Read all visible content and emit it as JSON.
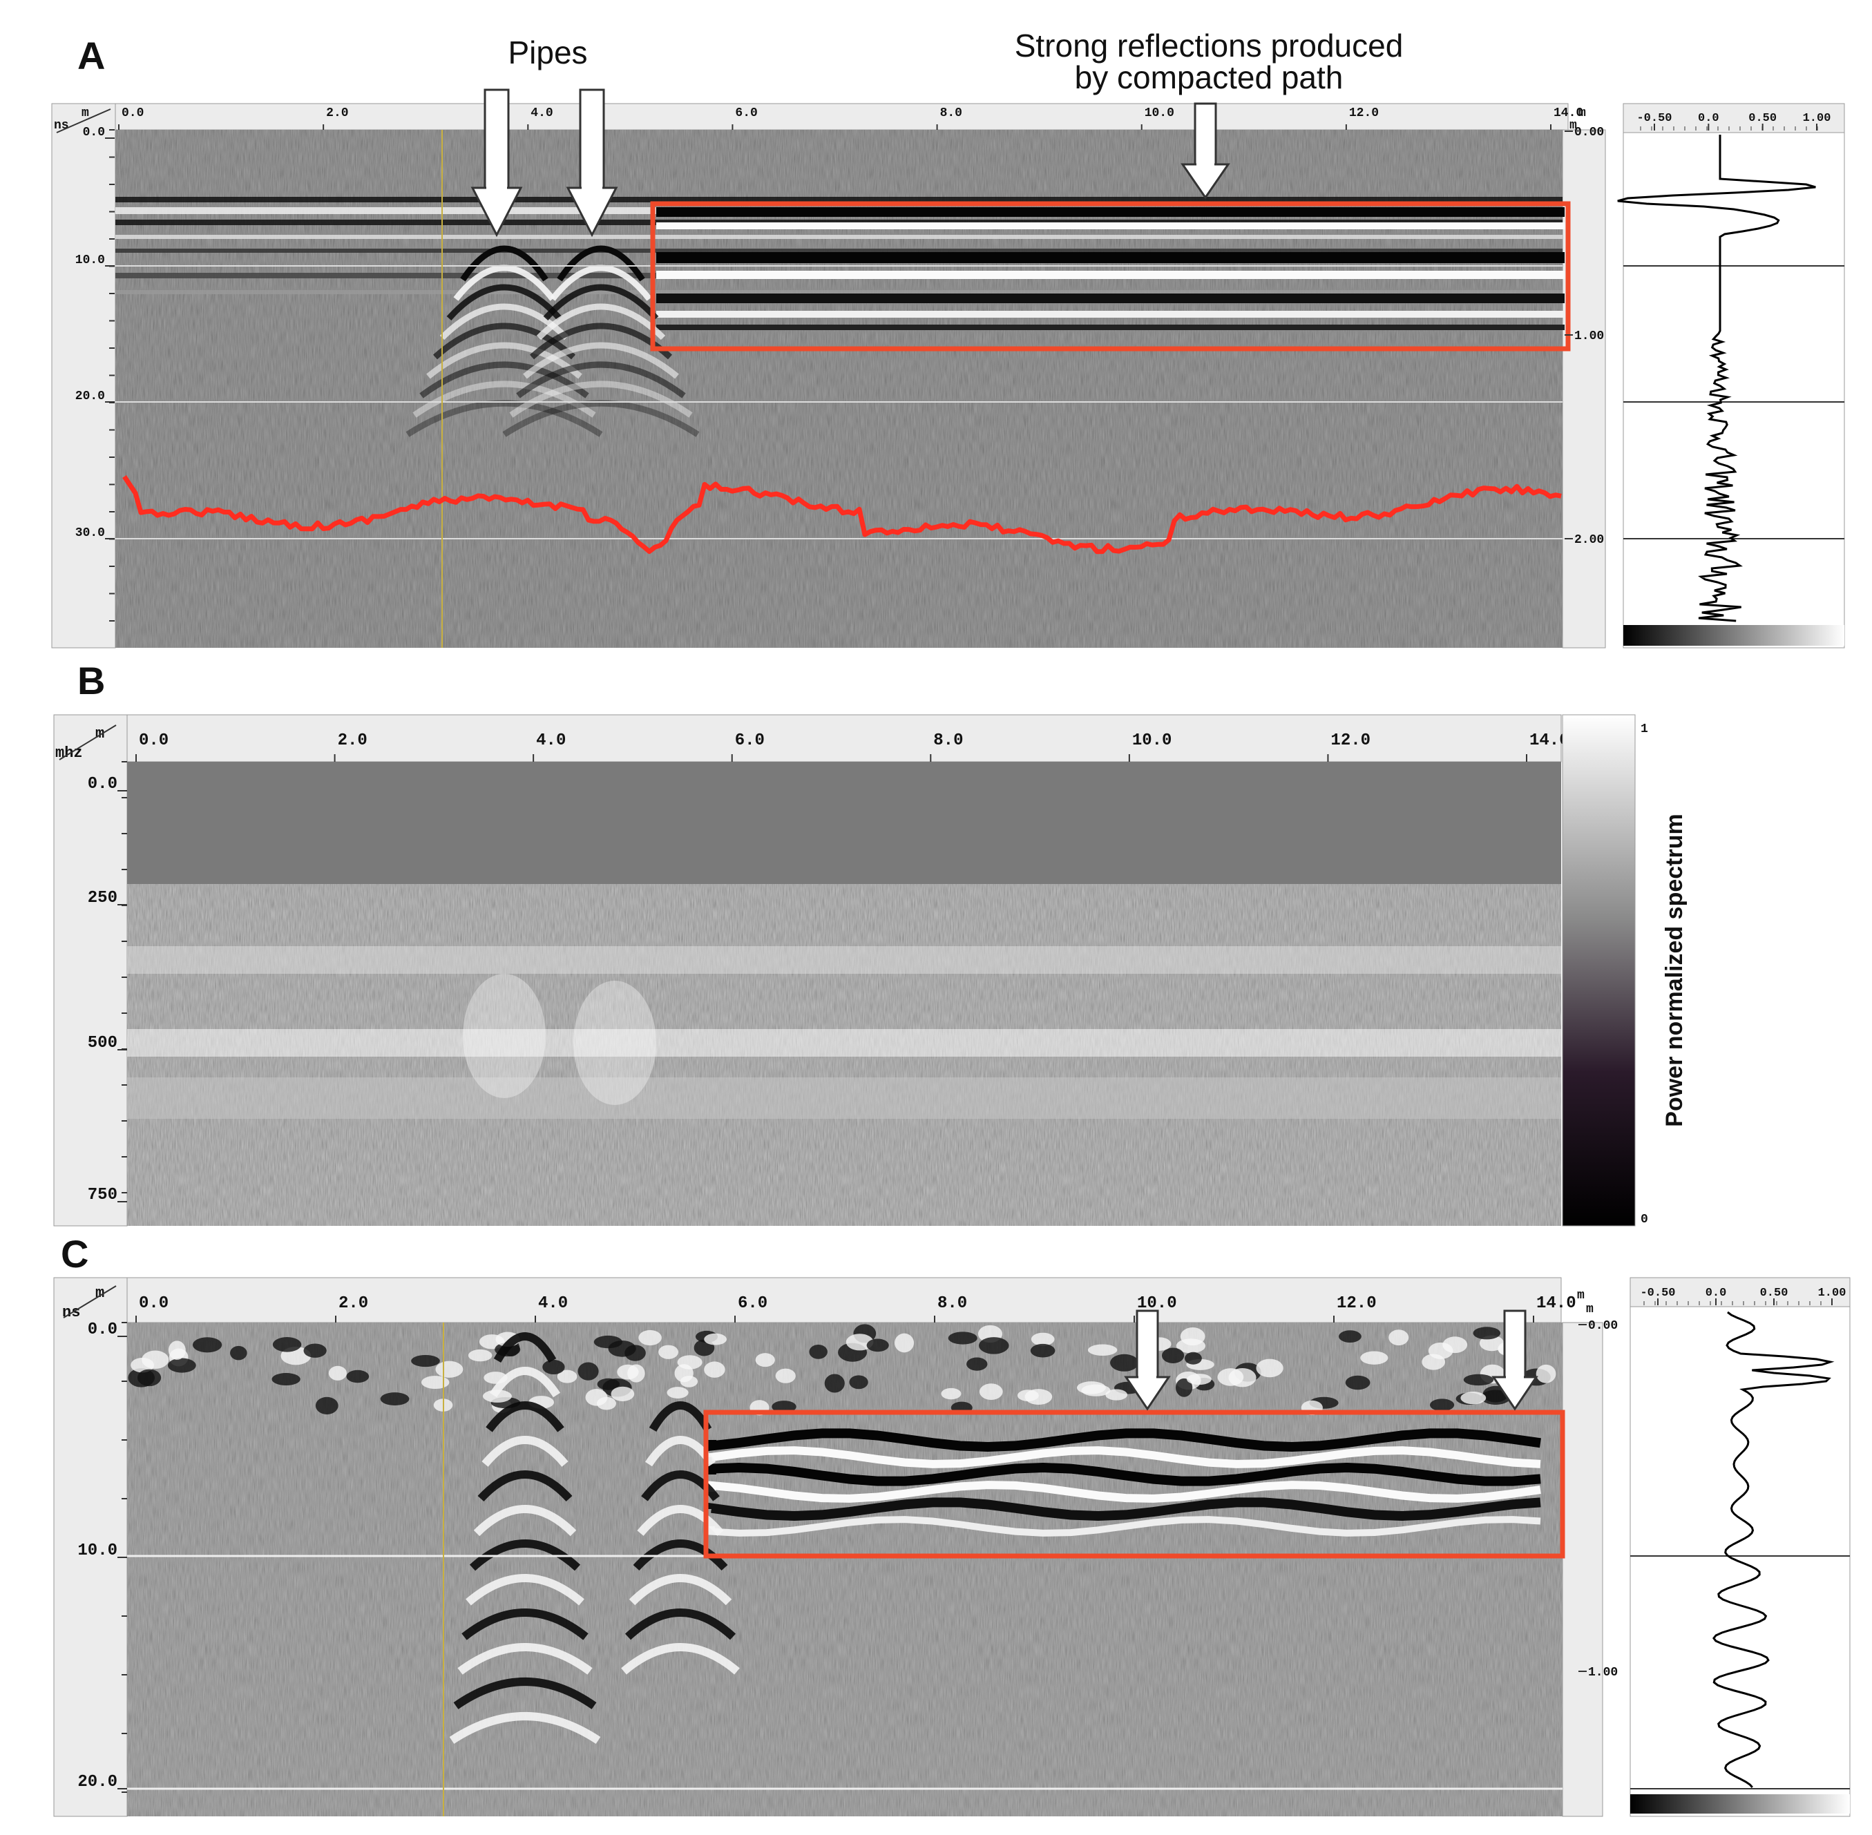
{
  "panels": {
    "a": {
      "letter": "A",
      "corner_top": "m",
      "corner_bottom": "ns",
      "x_ticks": [
        "0.0",
        "2.0",
        "4.0",
        "6.0",
        "8.0",
        "10.0",
        "12.0",
        "14.0"
      ],
      "x_unit": "m",
      "y_ticks": [
        "0.0",
        "10.0",
        "20.0",
        "30.0"
      ],
      "depth_unit_top": "m",
      "depth_unit_bottom": "m",
      "depth_ticks": [
        "0.00",
        "1.00",
        "2.00"
      ],
      "trace_ticks": [
        "-0.50",
        "0.0",
        "0.50",
        "1.00"
      ]
    },
    "b": {
      "letter": "B",
      "corner_top": "m",
      "corner_bottom": "mhz",
      "x_ticks": [
        "0.0",
        "2.0",
        "4.0",
        "6.0",
        "8.0",
        "10.0",
        "12.0",
        "14.0"
      ],
      "y_ticks": [
        "0.0",
        "250",
        "500",
        "750"
      ],
      "colorbar_label": "Power normalized spectrum",
      "colorbar_max": "1",
      "colorbar_min": "0"
    },
    "c": {
      "letter": "C",
      "corner_top": "m",
      "corner_bottom": "ns",
      "x_ticks": [
        "0.0",
        "2.0",
        "4.0",
        "6.0",
        "8.0",
        "10.0",
        "12.0",
        "14.0"
      ],
      "x_unit": "m",
      "y_ticks": [
        "0.0",
        "10.0",
        "20.0"
      ],
      "depth_unit_top": "m",
      "depth_unit_bottom": "m",
      "depth_ticks": [
        "0.00",
        "1.00"
      ],
      "trace_ticks": [
        "-0.50",
        "0.0",
        "0.50",
        "1.00"
      ]
    }
  },
  "annotations": {
    "pipes": "Pipes",
    "strong_line1": "Strong reflections produced",
    "strong_line2": "by compacted path"
  },
  "colors": {
    "highlight_box": "#f04a2a",
    "red_trace": "#ff2d20",
    "radargram_bg": "#6f6f6f",
    "arrow": "#ffffff"
  }
}
